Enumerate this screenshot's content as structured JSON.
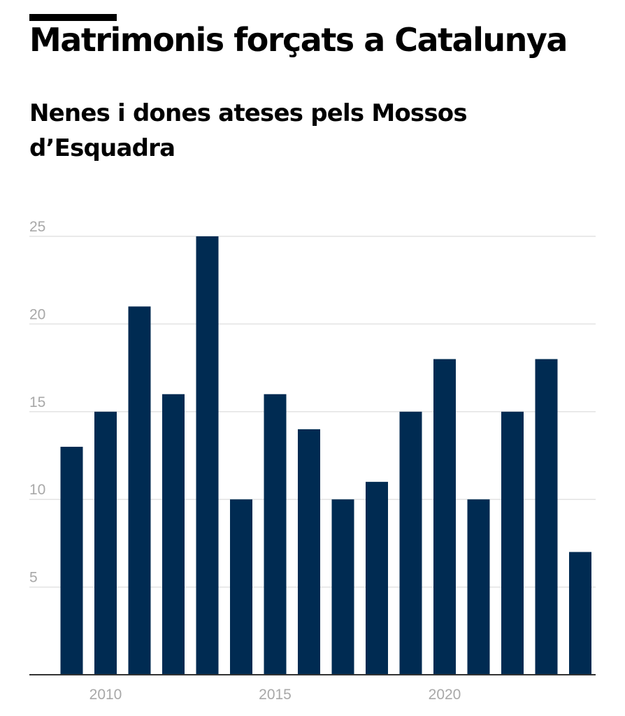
{
  "header": {
    "title": "Matrimonis forçats a Catalunya",
    "subtitle": "Nenes i dones ateses pels Mossos d’Esquadra"
  },
  "colors": {
    "bar": "#002b52",
    "grid": "#e3e3e3",
    "axis": "#333333",
    "tick_text": "#a8a8a8"
  },
  "chart_data": {
    "type": "bar",
    "title": "",
    "xlabel": "",
    "ylabel": "",
    "categories": [
      2009,
      2010,
      2011,
      2012,
      2013,
      2014,
      2015,
      2016,
      2017,
      2018,
      2019,
      2020,
      2021,
      2022,
      2023,
      2024
    ],
    "values": [
      13,
      15,
      21,
      16,
      25,
      10,
      16,
      14,
      10,
      11,
      15,
      18,
      10,
      15,
      18,
      7
    ],
    "ylim": [
      0,
      25
    ],
    "yticks": [
      5,
      10,
      15,
      20,
      25
    ],
    "xticks": [
      2010,
      2015,
      2020
    ],
    "grid": true,
    "legend": "none"
  }
}
